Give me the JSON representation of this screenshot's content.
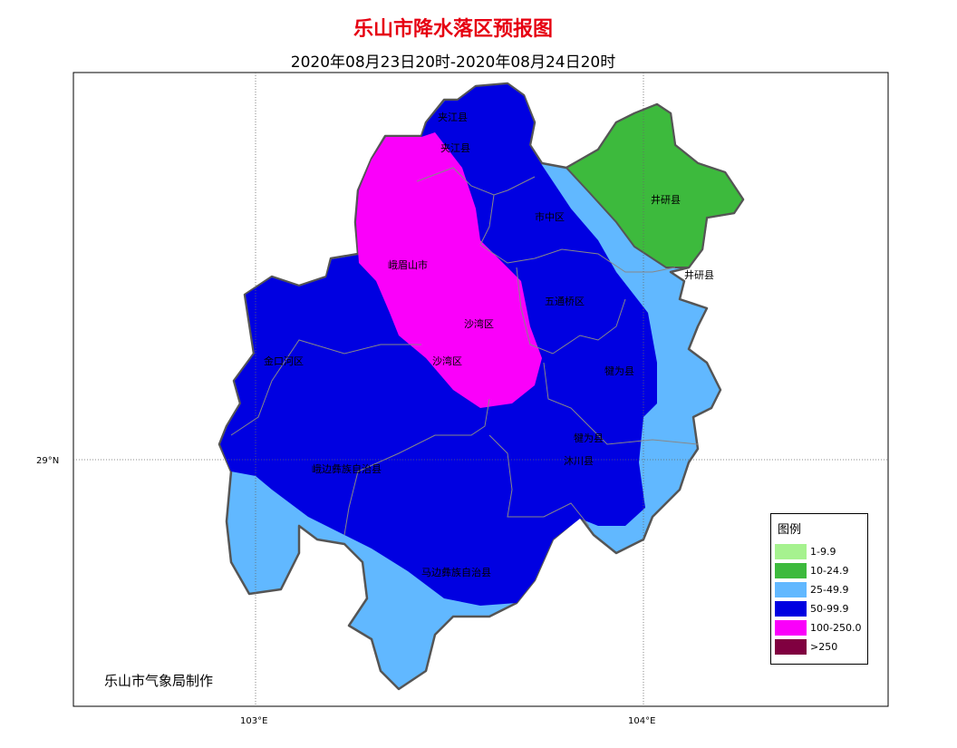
{
  "title": "乐山市降水落区预报图",
  "subtitle": "2020年08月23日20时-2020年08月24日20时",
  "axes": {
    "x_ticks": [
      "103°E",
      "104°E"
    ],
    "y_ticks": [
      "29°N"
    ]
  },
  "places": {
    "jiajiang_1": "夹江县",
    "jiajiang_2": "夹江县",
    "shizhong": "市中区",
    "jingyan_1": "井研县",
    "jingyan_2": "井研县",
    "emeishan": "峨眉山市",
    "wutongqiao": "五通桥区",
    "shawan_1": "沙湾区",
    "shawan_2": "沙湾区",
    "jinkouhe": "金口河区",
    "qianwei_1": "犍为县",
    "qianwei_2": "犍为县",
    "muchuan": "沐川县",
    "ebian": "峨边彝族自治县",
    "mabian": "马边彝族自治县"
  },
  "legend": {
    "title": "图例",
    "items": [
      {
        "label": "1-9.9",
        "color": "#a6f28f"
      },
      {
        "label": "10-24.9",
        "color": "#3dba3d"
      },
      {
        "label": "25-49.9",
        "color": "#61b8ff"
      },
      {
        "label": "50-99.9",
        "color": "#0000e1"
      },
      {
        "label": "100-250.0",
        "color": "#fa00fa"
      },
      {
        "label": ">250",
        "color": "#800040"
      }
    ]
  },
  "credit": "乐山市气象局制作"
}
